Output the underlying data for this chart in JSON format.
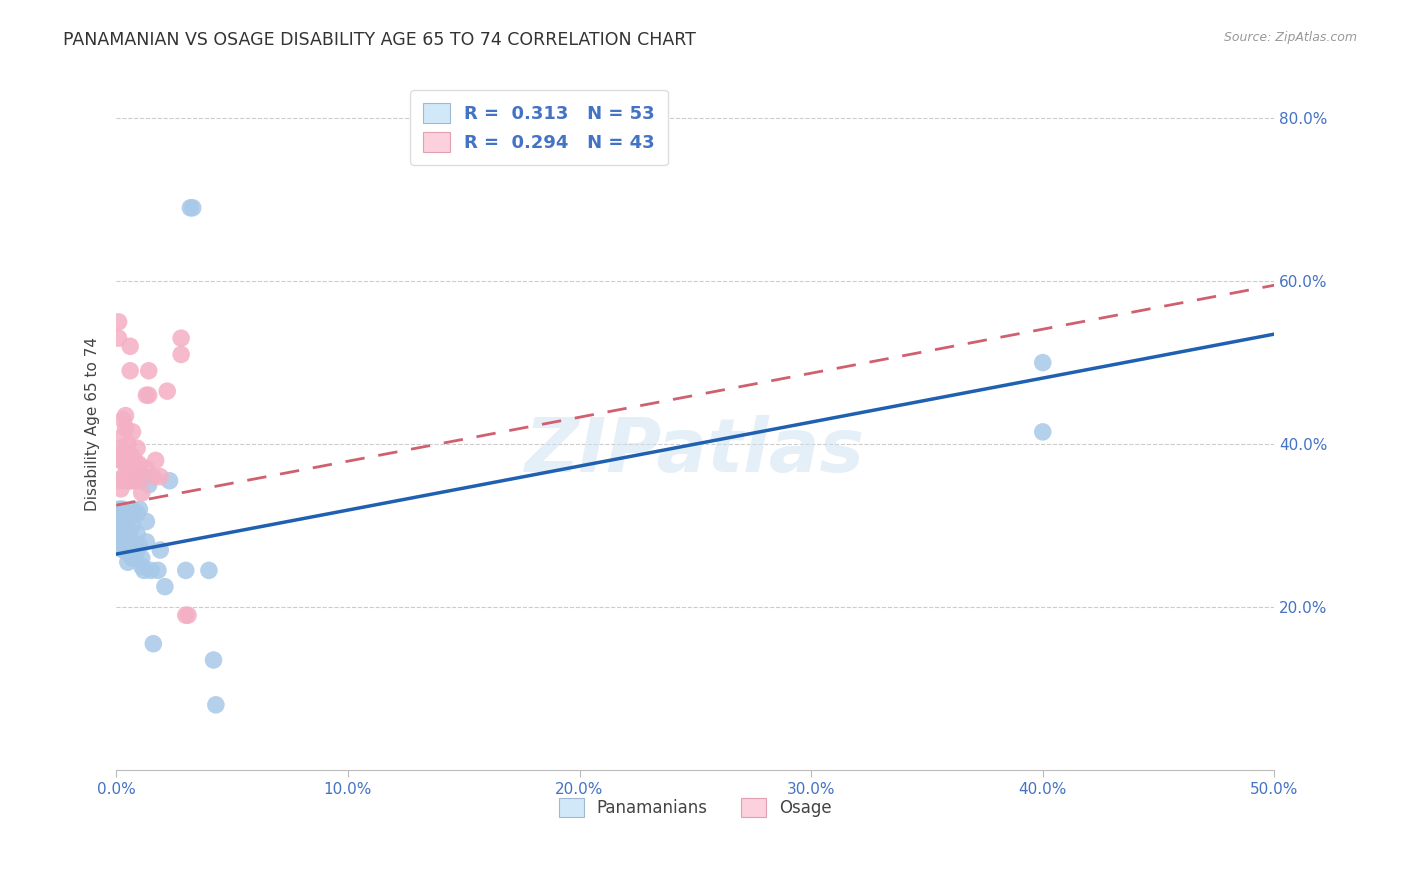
{
  "title": "PANAMANIAN VS OSAGE DISABILITY AGE 65 TO 74 CORRELATION CHART",
  "source": "Source: ZipAtlas.com",
  "ylabel": "Disability Age 65 to 74",
  "xlim": [
    0.0,
    0.5
  ],
  "ylim": [
    0.0,
    0.85
  ],
  "xtick_labels": [
    "0.0%",
    "10.0%",
    "20.0%",
    "30.0%",
    "40.0%",
    "50.0%"
  ],
  "xtick_vals": [
    0.0,
    0.1,
    0.2,
    0.3,
    0.4,
    0.5
  ],
  "ytick_labels": [
    "20.0%",
    "40.0%",
    "60.0%",
    "80.0%"
  ],
  "ytick_vals": [
    0.2,
    0.4,
    0.6,
    0.8
  ],
  "blue_scatter_color": "#a8c8e8",
  "pink_scatter_color": "#f4b0c4",
  "blue_line_color": "#2060b0",
  "pink_line_color": "#d06070",
  "R_blue": "0.313",
  "N_blue": "53",
  "R_pink": "0.294",
  "N_pink": "43",
  "legend_label_blue": "Panamanians",
  "legend_label_pink": "Osage",
  "watermark": "ZIPatlas",
  "blue_line_x0": 0.0,
  "blue_line_y0": 0.265,
  "blue_line_x1": 0.5,
  "blue_line_y1": 0.535,
  "pink_line_x0": 0.0,
  "pink_line_y0": 0.325,
  "pink_line_x1": 0.5,
  "pink_line_y1": 0.595,
  "blue_points_x": [
    0.001,
    0.001,
    0.001,
    0.001,
    0.002,
    0.002,
    0.002,
    0.003,
    0.003,
    0.003,
    0.003,
    0.004,
    0.004,
    0.004,
    0.005,
    0.005,
    0.005,
    0.005,
    0.006,
    0.006,
    0.006,
    0.007,
    0.007,
    0.007,
    0.007,
    0.008,
    0.008,
    0.009,
    0.009,
    0.009,
    0.01,
    0.01,
    0.011,
    0.011,
    0.012,
    0.012,
    0.013,
    0.013,
    0.014,
    0.015,
    0.016,
    0.018,
    0.019,
    0.021,
    0.023,
    0.03,
    0.032,
    0.033,
    0.04,
    0.042,
    0.043,
    0.4,
    0.4
  ],
  "blue_points_y": [
    0.285,
    0.295,
    0.305,
    0.32,
    0.275,
    0.3,
    0.32,
    0.27,
    0.285,
    0.305,
    0.32,
    0.27,
    0.285,
    0.305,
    0.255,
    0.27,
    0.29,
    0.31,
    0.265,
    0.285,
    0.31,
    0.26,
    0.28,
    0.3,
    0.32,
    0.26,
    0.355,
    0.27,
    0.29,
    0.315,
    0.275,
    0.32,
    0.26,
    0.25,
    0.245,
    0.36,
    0.28,
    0.305,
    0.35,
    0.245,
    0.155,
    0.245,
    0.27,
    0.225,
    0.355,
    0.245,
    0.69,
    0.69,
    0.245,
    0.135,
    0.08,
    0.5,
    0.415
  ],
  "pink_points_x": [
    0.001,
    0.001,
    0.002,
    0.002,
    0.002,
    0.002,
    0.003,
    0.003,
    0.003,
    0.003,
    0.003,
    0.004,
    0.004,
    0.004,
    0.004,
    0.005,
    0.005,
    0.005,
    0.006,
    0.006,
    0.006,
    0.007,
    0.007,
    0.007,
    0.008,
    0.008,
    0.009,
    0.009,
    0.01,
    0.01,
    0.011,
    0.013,
    0.013,
    0.014,
    0.014,
    0.016,
    0.017,
    0.019,
    0.022,
    0.028,
    0.028,
    0.03,
    0.031
  ],
  "pink_points_y": [
    0.53,
    0.55,
    0.38,
    0.395,
    0.355,
    0.345,
    0.36,
    0.378,
    0.39,
    0.41,
    0.43,
    0.36,
    0.375,
    0.42,
    0.435,
    0.355,
    0.375,
    0.4,
    0.355,
    0.49,
    0.52,
    0.355,
    0.385,
    0.415,
    0.36,
    0.38,
    0.37,
    0.395,
    0.355,
    0.375,
    0.34,
    0.37,
    0.46,
    0.46,
    0.49,
    0.36,
    0.38,
    0.36,
    0.465,
    0.53,
    0.51,
    0.19,
    0.19
  ]
}
